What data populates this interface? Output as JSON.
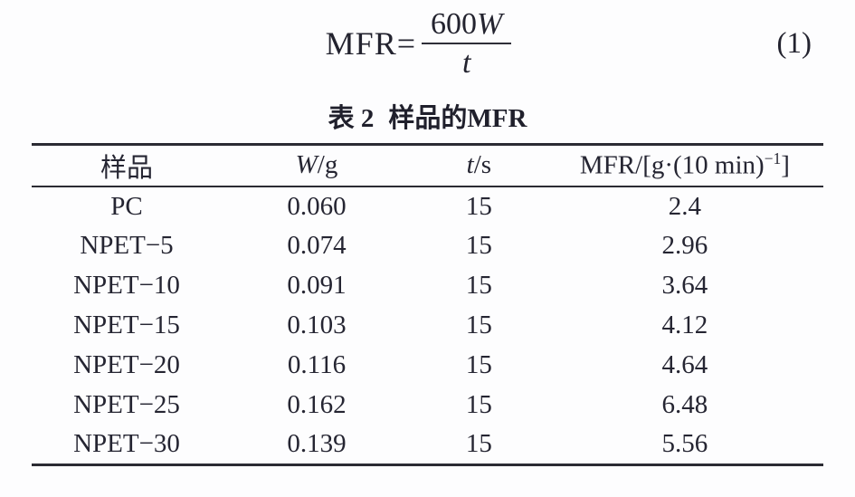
{
  "page": {
    "background_color": "#fdfdfe",
    "text_color": "#23232f",
    "rule_color": "#2b2b33"
  },
  "equation": {
    "lhs": "MFR=",
    "numerator_coefficient": "600",
    "numerator_variable": "W",
    "denominator_variable": "t",
    "number": "(1)"
  },
  "table": {
    "title_prefix": "表 2",
    "title_text": "样品的MFR",
    "headers": {
      "sample": "样品",
      "w_variable": "W",
      "w_unit": "/g",
      "t_variable": "t",
      "t_unit": "/s",
      "mfr_pre": "MFR/[g·(10 min)",
      "mfr_sup": "−1",
      "mfr_post": "]"
    },
    "rows": [
      {
        "sample": "PC",
        "w": "0.060",
        "t": "15",
        "mfr": "2.4"
      },
      {
        "sample": "NPET−5",
        "w": "0.074",
        "t": "15",
        "mfr": "2.96"
      },
      {
        "sample": "NPET−10",
        "w": "0.091",
        "t": "15",
        "mfr": "3.64"
      },
      {
        "sample": "NPET−15",
        "w": "0.103",
        "t": "15",
        "mfr": "4.12"
      },
      {
        "sample": "NPET−20",
        "w": "0.116",
        "t": "15",
        "mfr": "4.64"
      },
      {
        "sample": "NPET−25",
        "w": "0.162",
        "t": "15",
        "mfr": "6.48"
      },
      {
        "sample": "NPET−30",
        "w": "0.139",
        "t": "15",
        "mfr": "5.56"
      }
    ]
  }
}
